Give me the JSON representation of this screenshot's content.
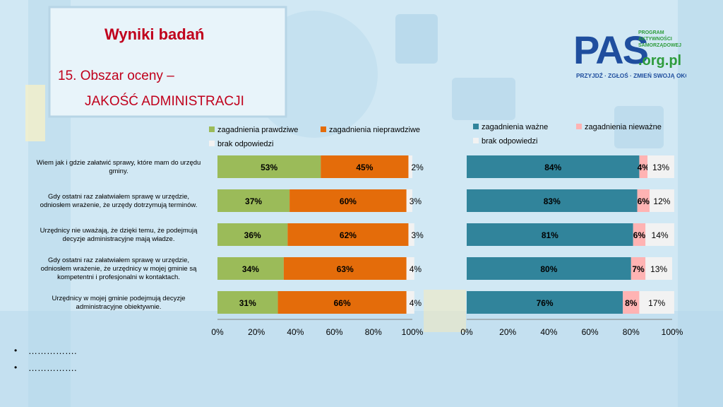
{
  "slide": {
    "title": "Wyniki badań",
    "subtitle_line1": "15. Obszar oceny –",
    "subtitle_line2": "JAKOŚĆ ADMINISTRACJI",
    "bullets": [
      "…………….",
      "……………."
    ],
    "logo_main": "PAS",
    "logo_domain": ".org.pl",
    "logo_side_lines": [
      "PROGRAM",
      "AKTYWNOŚCI",
      "SAMORZĄDOWEJ"
    ],
    "logo_tagline": "PRZYJDŹ · ZGŁOŚ · ZMIEŃ SWOJĄ OKOLICĘ"
  },
  "chart_data": [
    {
      "type": "bar",
      "orientation": "horizontal",
      "stacked": true,
      "categories": [
        "Wiem jak i gdzie załatwić sprawy, które mam do urzędu gminy.",
        "Gdy ostatni raz załatwiałem sprawę w urzędzie, odniosłem wrażenie, że urzędy dotrzymują terminów.",
        "Urzędnicy nie uważają, że dzięki temu, że podejmują decyzje administracyjne mają władze.",
        "Gdy ostatni raz załatwiałem sprawę w urzędzie, odniosłem wrażenie, że urzędnicy w mojej gminie są kompetentni i profesjonalni w kontaktach.",
        "Urzędnicy w mojej gminie podejmują decyzje administracyjne obiektywnie."
      ],
      "category_lines": [
        [
          "Wiem jak i gdzie załatwić sprawy, które mam do urzędu",
          "gminy."
        ],
        [
          "Gdy ostatni raz załatwiałem sprawę w urzędzie,",
          "odniosłem wrażenie, że urzędy dotrzymują terminów."
        ],
        [
          "Urzędnicy nie uważają, że dzięki temu, że podejmują",
          "decyzje administracyjne mają władze."
        ],
        [
          "Gdy ostatni raz załatwiałem sprawę w urzędzie,",
          "odniosłem wrażenie, że urzędnicy w mojej gminie są",
          "kompetentni i profesjonalni w kontaktach."
        ],
        [
          "Urzędnicy w mojej gminie podejmują decyzje",
          "administracyjne obiektywnie."
        ]
      ],
      "series": [
        {
          "name": "zagadnienia prawdziwe",
          "values": [
            53,
            37,
            36,
            34,
            31
          ],
          "color": "#9bbb59"
        },
        {
          "name": "zagadnienia nieprawdziwe",
          "values": [
            45,
            60,
            62,
            63,
            66
          ],
          "color": "#e46c0a"
        },
        {
          "name": "brak odpowiedzi",
          "values": [
            2,
            3,
            3,
            4,
            4
          ],
          "color": "#f2f2f2"
        }
      ],
      "xlim": [
        0,
        100
      ],
      "ticks": [
        "0%",
        "20%",
        "40%",
        "60%",
        "80%",
        "100%"
      ],
      "tick_values": [
        0,
        20,
        40,
        60,
        80,
        100
      ],
      "legend": "top",
      "grid": false
    },
    {
      "type": "bar",
      "orientation": "horizontal",
      "stacked": true,
      "categories": [
        "Wiem jak i gdzie załatwić sprawy, które mam do urzędu gminy.",
        "Gdy ostatni raz załatwiałem sprawę w urzędzie, odniosłem wrażenie, że urzędy dotrzymują terminów.",
        "Urzędnicy nie uważają, że dzięki temu, że podejmują decyzje administracyjne mają władze.",
        "Gdy ostatni raz załatwiałem sprawę w urzędzie, odniosłem wrażenie, że urzędnicy w mojej gminie są kompetentni i profesjonalni w kontaktach.",
        "Urzędnicy w mojej gminie podejmują decyzje administracyjne obiektywnie."
      ],
      "series": [
        {
          "name": "zagadnienia ważne",
          "values": [
            84,
            83,
            81,
            80,
            76
          ],
          "color": "#31849b"
        },
        {
          "name": "zagadnienia nieważne",
          "values": [
            4,
            6,
            6,
            7,
            8
          ],
          "color": "#ffb3b3"
        },
        {
          "name": "brak odpowiedzi",
          "values": [
            13,
            12,
            14,
            13,
            17
          ],
          "color": "#f2f2f2"
        }
      ],
      "xlim": [
        0,
        100
      ],
      "ticks": [
        "0%",
        "20%",
        "40%",
        "60%",
        "80%",
        "100%"
      ],
      "tick_values": [
        0,
        20,
        40,
        60,
        80,
        100
      ],
      "legend": "top",
      "grid": false
    }
  ]
}
